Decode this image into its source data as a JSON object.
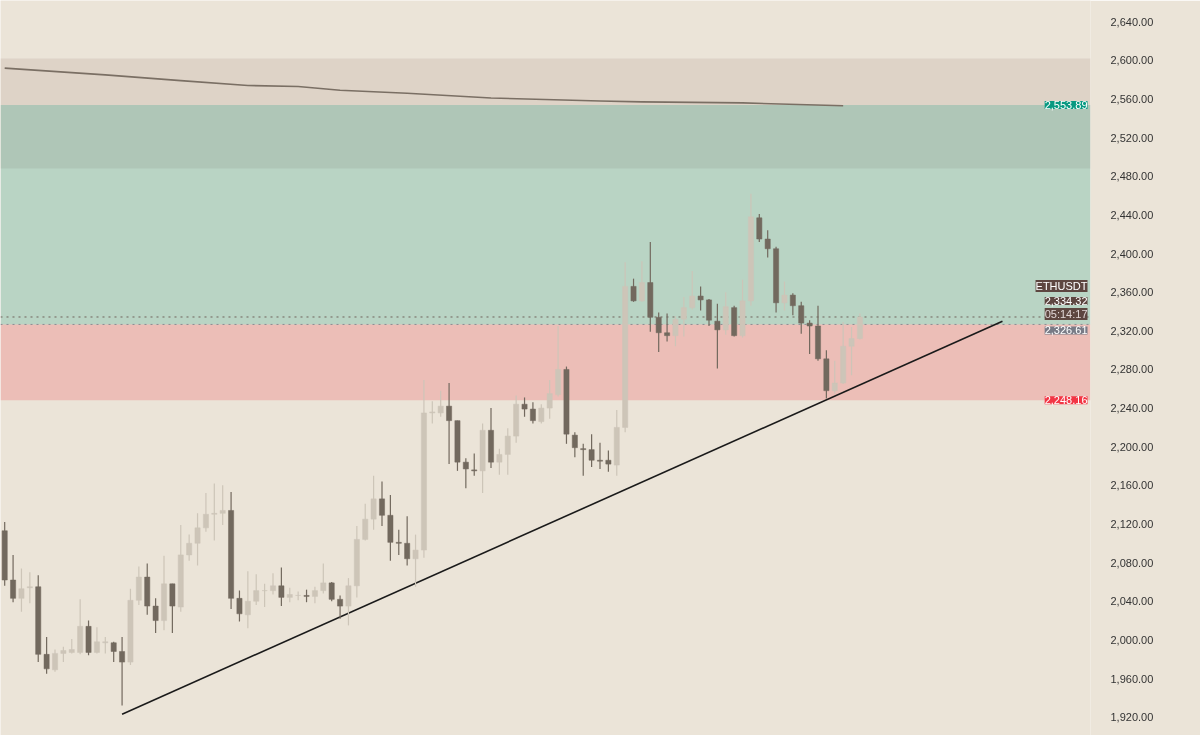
{
  "chart_data": {
    "type": "candlestick",
    "categories": [
      null,
      null,
      null,
      null,
      null,
      null,
      null,
      null,
      null,
      null,
      null,
      null,
      null,
      null,
      null,
      null,
      null,
      null,
      null,
      null,
      null,
      null,
      null,
      null,
      null,
      null,
      null,
      null,
      null,
      null,
      null,
      null,
      null,
      null,
      null,
      null,
      null,
      null,
      null,
      null,
      null,
      null,
      null,
      null,
      null,
      null,
      null,
      null,
      null,
      null,
      null,
      null,
      null,
      null,
      null,
      null,
      null,
      null,
      null,
      null,
      null,
      null,
      null,
      null,
      null,
      null,
      null,
      null,
      null,
      null,
      null,
      null,
      null,
      null,
      null,
      null,
      null,
      null,
      null,
      null,
      null,
      null,
      null,
      null,
      null,
      null,
      null,
      null,
      null,
      null,
      null,
      null,
      null,
      null,
      null,
      null,
      null,
      null,
      null,
      null,
      null,
      null,
      null,
      null,
      null,
      null,
      null,
      null,
      null,
      null,
      null,
      null,
      null,
      null,
      null,
      null,
      null,
      null,
      null,
      null,
      null,
      null,
      null,
      null,
      null,
      null,
      null,
      null,
      null,
      null
    ],
    "ohlc": [
      [
        2113,
        2122,
        2056,
        2062
      ],
      [
        2062,
        2088,
        2039,
        2043
      ],
      [
        2043,
        2074,
        2029,
        2053
      ],
      [
        2054,
        2070,
        2038,
        2055
      ],
      [
        2055,
        2067,
        1977,
        1985
      ],
      [
        1985,
        2003,
        1965,
        1970
      ],
      [
        1969,
        1990,
        1967,
        1986
      ],
      [
        1986,
        1993,
        1977,
        1989
      ],
      [
        1987,
        2001,
        1986,
        1990
      ],
      [
        1987,
        2042,
        1985,
        2014
      ],
      [
        2014,
        2020,
        1984,
        1987
      ],
      [
        1987,
        2013,
        1986,
        1998
      ],
      [
        1997,
        2003,
        1986,
        1998
      ],
      [
        1997,
        1998,
        1977,
        1988
      ],
      [
        1988,
        2003,
        1932,
        1977
      ],
      [
        1977,
        2053,
        1974,
        2041
      ],
      [
        2041,
        2076,
        2036,
        2065
      ],
      [
        2065,
        2079,
        2026,
        2035
      ],
      [
        2035,
        2043,
        2007,
        2020
      ],
      [
        2020,
        2087,
        2010,
        2058
      ],
      [
        2058,
        2058,
        2007,
        2035
      ],
      [
        2034,
        2119,
        2029,
        2088
      ],
      [
        2088,
        2109,
        2082,
        2100
      ],
      [
        2100,
        2131,
        2077,
        2116
      ],
      [
        2116,
        2152,
        2112,
        2130
      ],
      [
        2130,
        2162,
        2103,
        2131
      ],
      [
        2131,
        2160,
        2119,
        2134
      ],
      [
        2134,
        2153,
        2032,
        2043
      ],
      [
        2043,
        2051,
        2019,
        2027
      ],
      [
        2026,
        2071,
        2012,
        2040
      ],
      [
        2040,
        2068,
        2036,
        2051
      ],
      [
        2051,
        2058,
        2034,
        2051
      ],
      [
        2051,
        2069,
        2047,
        2056
      ],
      [
        2056,
        2075,
        2035,
        2044
      ],
      [
        2044,
        2054,
        2039,
        2047
      ],
      [
        2046,
        2050,
        2041,
        2046
      ],
      [
        2046,
        2052,
        2039,
        2045
      ],
      [
        2045,
        2055,
        2038,
        2051
      ],
      [
        2051,
        2079,
        2048,
        2059
      ],
      [
        2059,
        2060,
        2040,
        2042
      ],
      [
        2042,
        2046,
        2022,
        2035
      ],
      [
        2035,
        2064,
        2015,
        2056
      ],
      [
        2056,
        2118,
        2044,
        2104
      ],
      [
        2104,
        2141,
        2103,
        2125
      ],
      [
        2125,
        2170,
        2114,
        2146
      ],
      [
        2146,
        2164,
        2118,
        2129
      ],
      [
        2129,
        2150,
        2082,
        2101
      ],
      [
        2101,
        2114,
        2088,
        2100
      ],
      [
        2100,
        2128,
        2077,
        2084
      ],
      [
        2084,
        2109,
        2055,
        2093
      ],
      [
        2093,
        2269,
        2085,
        2235
      ],
      [
        2235,
        2247,
        2224,
        2236
      ],
      [
        2235,
        2258,
        2231,
        2242
      ],
      [
        2242,
        2266,
        2182,
        2227
      ],
      [
        2227,
        2227,
        2175,
        2184
      ],
      [
        2184,
        2188,
        2157,
        2177
      ],
      [
        2176,
        2193,
        2170,
        2175
      ],
      [
        2175,
        2224,
        2152,
        2217
      ],
      [
        2217,
        2240,
        2178,
        2184
      ],
      [
        2184,
        2198,
        2171,
        2192
      ],
      [
        2192,
        2219,
        2171,
        2211
      ],
      [
        2211,
        2253,
        2204,
        2244
      ],
      [
        2244,
        2251,
        2231,
        2239
      ],
      [
        2239,
        2246,
        2224,
        2227
      ],
      [
        2226,
        2244,
        2224,
        2240
      ],
      [
        2240,
        2269,
        2229,
        2255
      ],
      [
        2254,
        2325,
        2252,
        2280
      ],
      [
        2280,
        2283,
        2203,
        2213
      ],
      [
        2212,
        2215,
        2189,
        2199
      ],
      [
        2198,
        2203,
        2170,
        2197
      ],
      [
        2197,
        2213,
        2179,
        2186
      ],
      [
        2186,
        2204,
        2177,
        2185
      ],
      [
        2186,
        2196,
        2174,
        2182
      ],
      [
        2181,
        2238,
        2170,
        2220
      ],
      [
        2220,
        2391,
        2215,
        2366
      ],
      [
        2366,
        2374,
        2350,
        2351
      ],
      [
        2351,
        2392,
        2350,
        2370
      ],
      [
        2370,
        2412,
        2319,
        2334
      ],
      [
        2334,
        2339,
        2298,
        2318
      ],
      [
        2318,
        2338,
        2309,
        2315
      ],
      [
        2315,
        2335,
        2304,
        2332
      ],
      [
        2332,
        2355,
        2314,
        2344
      ],
      [
        2344,
        2382,
        2342,
        2356
      ],
      [
        2356,
        2366,
        2341,
        2352
      ],
      [
        2352,
        2353,
        2325,
        2331
      ],
      [
        2330,
        2348,
        2281,
        2321
      ],
      [
        2321,
        2360,
        2316,
        2345
      ],
      [
        2344,
        2346,
        2314,
        2315
      ],
      [
        2315,
        2373,
        2313,
        2351
      ],
      [
        2351,
        2462,
        2346,
        2438
      ],
      [
        2437,
        2441,
        2412,
        2415
      ],
      [
        2415,
        2424,
        2396,
        2405
      ],
      [
        2405,
        2407,
        2339,
        2349
      ],
      [
        2349,
        2371,
        2341,
        2357
      ],
      [
        2357,
        2359,
        2336,
        2346
      ],
      [
        2346,
        2350,
        2317,
        2328
      ],
      [
        2328,
        2331,
        2296,
        2325
      ],
      [
        2325,
        2346,
        2289,
        2291
      ],
      [
        2291,
        2300,
        2250,
        2258
      ],
      [
        2258,
        2289,
        2255,
        2266
      ],
      [
        2266,
        2329,
        2265,
        2304
      ],
      [
        2304,
        2324,
        2274,
        2312
      ],
      [
        2312,
        2338,
        2311,
        2334.32
      ],
      null,
      null,
      null,
      null,
      null,
      null,
      null,
      null,
      null,
      null,
      null,
      null,
      null,
      null,
      null,
      null,
      null,
      null,
      null,
      null,
      null,
      null,
      null,
      null,
      null,
      null,
      null
    ],
    "colors": [
      "#72695e",
      "#72695e",
      "#cdc5b8",
      "#cdc5b8",
      "#72695e",
      "#72695e",
      "#cdc5b8",
      "#cdc5b8",
      "#cdc5b8",
      "#cdc5b8",
      "#72695e",
      "#cdc5b8",
      "#cdc5b8",
      "#72695e",
      "#72695e",
      "#cdc5b8",
      "#cdc5b8",
      "#72695e",
      "#72695e",
      "#cdc5b8",
      "#72695e",
      "#cdc5b8",
      "#cdc5b8",
      "#cdc5b8",
      "#cdc5b8",
      "#cdc5b8",
      "#cdc5b8",
      "#72695e",
      "#72695e",
      "#cdc5b8",
      "#cdc5b8",
      "#cdc5b8",
      "#cdc5b8",
      "#72695e",
      "#cdc5b8",
      "#cdc5b8",
      "#72695e",
      "#cdc5b8",
      "#cdc5b8",
      "#72695e",
      "#72695e",
      "#cdc5b8",
      "#cdc5b8",
      "#cdc5b8",
      "#cdc5b8",
      "#72695e",
      "#72695e",
      "#72695e",
      "#72695e",
      "#cdc5b8",
      "#cdc5b8",
      "#cdc5b8",
      "#cdc5b8",
      "#72695e",
      "#72695e",
      "#72695e",
      "#72695e",
      "#cdc5b8",
      "#72695e",
      "#cdc5b8",
      "#cdc5b8",
      "#cdc5b8",
      "#72695e",
      "#72695e",
      "#cdc5b8",
      "#cdc5b8",
      "#cdc5b8",
      "#72695e",
      "#72695e",
      "#72695e",
      "#72695e",
      "#72695e",
      "#72695e",
      "#cdc5b8",
      "#cdc5b8",
      "#72695e",
      "#cdc5b8",
      "#72695e",
      "#72695e",
      "#72695e",
      "#cdc5b8",
      "#cdc5b8",
      "#cdc5b8",
      "#72695e",
      "#72695e",
      "#72695e",
      "#cdc5b8",
      "#72695e",
      "#cdc5b8",
      "#cdc5b8",
      "#72695e",
      "#72695e",
      "#72695e",
      "#cdc5b8",
      "#72695e",
      "#72695e",
      "#72695e",
      "#72695e",
      "#72695e",
      "#cdc5b8",
      "#cdc5b8",
      "#cdc5b8",
      "#cdc5b8",
      null,
      null,
      null,
      null,
      null,
      null,
      null,
      null,
      null,
      null,
      null,
      null,
      null,
      null,
      null,
      null,
      null,
      null,
      null,
      null,
      null,
      null,
      null,
      null,
      null,
      null,
      null
    ],
    "series": [
      {
        "type": "line",
        "color": "#7a6f64",
        "values": [
          2592,
          null,
          null,
          null,
          null,
          null,
          null,
          null,
          null,
          null,
          null,
          null,
          2585,
          null,
          null,
          null,
          null,
          null,
          null,
          null,
          null,
          2579,
          null,
          null,
          null,
          null,
          null,
          null,
          null,
          2574,
          null,
          null,
          null,
          null,
          null,
          2573,
          null,
          null,
          null,
          null,
          2569,
          null,
          null,
          null,
          null,
          null,
          null,
          null,
          2566,
          null,
          null,
          null,
          null,
          null,
          null,
          null,
          null,
          null,
          2561,
          null,
          null,
          null,
          null,
          null,
          null,
          null,
          null,
          null,
          null,
          null,
          null,
          2558,
          null,
          null,
          null,
          null,
          2557,
          null,
          null,
          null,
          null,
          null,
          null,
          null,
          null,
          null,
          null,
          null,
          2556,
          null,
          null,
          null,
          null,
          null,
          null,
          null,
          null,
          null,
          null,
          null,
          2553,
          null,
          null,
          null,
          null,
          null,
          null,
          null,
          null,
          null,
          null,
          null,
          null,
          null,
          null,
          null,
          null,
          null,
          null,
          null,
          null,
          null,
          null,
          null,
          null,
          null,
          null,
          null,
          null,
          null
        ]
      },
      {
        "type": "line",
        "color": "#1a1a1a",
        "values": [
          null,
          null,
          null,
          null,
          null,
          null,
          null,
          null,
          null,
          null,
          null,
          null,
          null,
          null,
          1923,
          null,
          null,
          null,
          null,
          null,
          null,
          null,
          null,
          null,
          null,
          null,
          null,
          null,
          null,
          null,
          null,
          null,
          null,
          null,
          null,
          null,
          null,
          null,
          null,
          null,
          null,
          null,
          null,
          null,
          null,
          null,
          null,
          null,
          null,
          null,
          null,
          null,
          null,
          null,
          null,
          null,
          null,
          null,
          null,
          null,
          null,
          null,
          null,
          null,
          null,
          null,
          null,
          null,
          null,
          null,
          null,
          null,
          null,
          null,
          null,
          null,
          null,
          null,
          null,
          null,
          null,
          null,
          null,
          null,
          null,
          null,
          null,
          null,
          null,
          null,
          null,
          null,
          null,
          null,
          null,
          null,
          null,
          null,
          null,
          null,
          null,
          null,
          null,
          null,
          null,
          null,
          null,
          null,
          null,
          null,
          null,
          null,
          null,
          null,
          null,
          null,
          null,
          null,
          null,
          2330,
          null,
          null,
          null,
          null,
          null,
          null,
          null,
          null,
          null,
          null
        ]
      }
    ],
    "ylim": [
      1901,
      2662
    ],
    "yticks": [
      {
        "value": 1920,
        "label": "1,920.00"
      },
      {
        "value": 1960,
        "label": "1,960.00"
      },
      {
        "value": 2000,
        "label": "2,000.00"
      },
      {
        "value": 2040,
        "label": "2,040.00"
      },
      {
        "value": 2080,
        "label": "2,080.00"
      },
      {
        "value": 2120,
        "label": "2,120.00"
      },
      {
        "value": 2160,
        "label": "2,160.00"
      },
      {
        "value": 2200,
        "label": "2,200.00"
      },
      {
        "value": 2240,
        "label": "2,240.00"
      },
      {
        "value": 2280,
        "label": "2,280.00"
      },
      {
        "value": 2320,
        "label": "2,320.00"
      },
      {
        "value": 2360,
        "label": "2,360.00"
      },
      {
        "value": 2400,
        "label": "2,400.00"
      },
      {
        "value": 2440,
        "label": "2,440.00"
      },
      {
        "value": 2480,
        "label": "2,480.00"
      },
      {
        "value": 2520,
        "label": "2,520.00"
      },
      {
        "value": 2560,
        "label": "2,560.00"
      },
      {
        "value": 2600,
        "label": "2,600.00"
      },
      {
        "value": 2640,
        "label": "2,640.00"
      }
    ],
    "bands": [
      {
        "axis": "y",
        "from": 2488,
        "to": 2602,
        "color": "#d9cdc1"
      },
      {
        "axis": "y",
        "from": 2326.61,
        "to": 2553.89,
        "label": "2,553.89",
        "color": "#089981"
      },
      {
        "axis": "y",
        "from": 2248.16,
        "to": 2326.61,
        "label": "2,248.16",
        "color": "#f23645"
      }
    ],
    "ref_lines": [
      {
        "axis": "y",
        "value": 2334.32,
        "label": "2,334.32",
        "color": "#5d4640",
        "line_style": "dotted"
      },
      {
        "axis": "y",
        "value": 2326.61,
        "label": "2,326.61",
        "color": "#787b86",
        "line_style": "dotted"
      }
    ],
    "annotations": [
      "ETHUSDT",
      "05:14:17"
    ],
    "tick_labels": "y",
    "grid": false
  }
}
